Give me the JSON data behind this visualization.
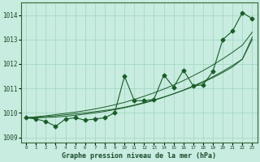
{
  "xlabel": "Graphe pression niveau de la mer (hPa)",
  "ylim": [
    1008.8,
    1014.5
  ],
  "xlim": [
    -0.5,
    23.5
  ],
  "yticks": [
    1009,
    1010,
    1011,
    1012,
    1013,
    1014
  ],
  "bg_color": "#c8ece0",
  "grid_color": "#a0d4c0",
  "line_color": "#1a5c28",
  "main_data": [
    1009.8,
    1009.75,
    1009.65,
    1009.45,
    1009.75,
    1009.8,
    1009.7,
    1009.75,
    1009.8,
    1010.0,
    1011.5,
    1010.5,
    1010.5,
    1010.55,
    1011.55,
    1011.05,
    1011.75,
    1011.1,
    1011.15,
    1011.7,
    1013.0,
    1013.35,
    1014.1,
    1013.85
  ],
  "line1_data": [
    1009.8,
    1009.82,
    1009.85,
    1009.88,
    1009.92,
    1009.96,
    1010.0,
    1010.05,
    1010.1,
    1010.16,
    1010.23,
    1010.32,
    1010.42,
    1010.53,
    1010.65,
    1010.78,
    1010.92,
    1011.08,
    1011.25,
    1011.44,
    1011.65,
    1011.88,
    1012.2,
    1013.1
  ],
  "line2_data": [
    1009.8,
    1009.84,
    1009.88,
    1009.93,
    1009.98,
    1010.03,
    1010.09,
    1010.16,
    1010.24,
    1010.33,
    1010.43,
    1010.55,
    1010.68,
    1010.82,
    1010.97,
    1011.14,
    1011.32,
    1011.52,
    1011.73,
    1011.96,
    1012.21,
    1012.48,
    1012.77,
    1013.3
  ],
  "line3_data": [
    1009.8,
    1009.8,
    1009.81,
    1009.83,
    1009.86,
    1009.9,
    1009.95,
    1010.0,
    1010.06,
    1010.13,
    1010.21,
    1010.3,
    1010.4,
    1010.51,
    1010.64,
    1010.78,
    1010.93,
    1011.1,
    1011.28,
    1011.48,
    1011.7,
    1011.94,
    1012.2,
    1013.0
  ]
}
